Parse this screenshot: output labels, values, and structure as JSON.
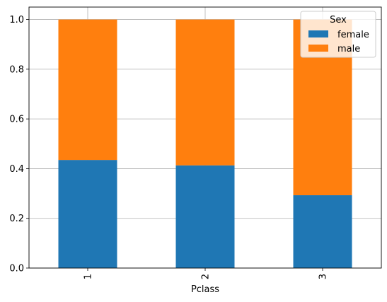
{
  "chart_data": {
    "type": "bar",
    "stacked": true,
    "categories": [
      "1",
      "2",
      "3"
    ],
    "series": [
      {
        "name": "female",
        "values": [
          0.435,
          0.413,
          0.293
        ],
        "color": "#1f77b4"
      },
      {
        "name": "male",
        "values": [
          0.565,
          0.587,
          0.707
        ],
        "color": "#ff7f0e"
      }
    ],
    "xlabel": "Pclass",
    "ylabel": "",
    "ylim": [
      0,
      1.05
    ],
    "yticks": [
      "0.0",
      "0.2",
      "0.4",
      "0.6",
      "0.8",
      "1.0"
    ],
    "grid": true,
    "legend": {
      "title": "Sex",
      "placement": "top-right"
    }
  }
}
